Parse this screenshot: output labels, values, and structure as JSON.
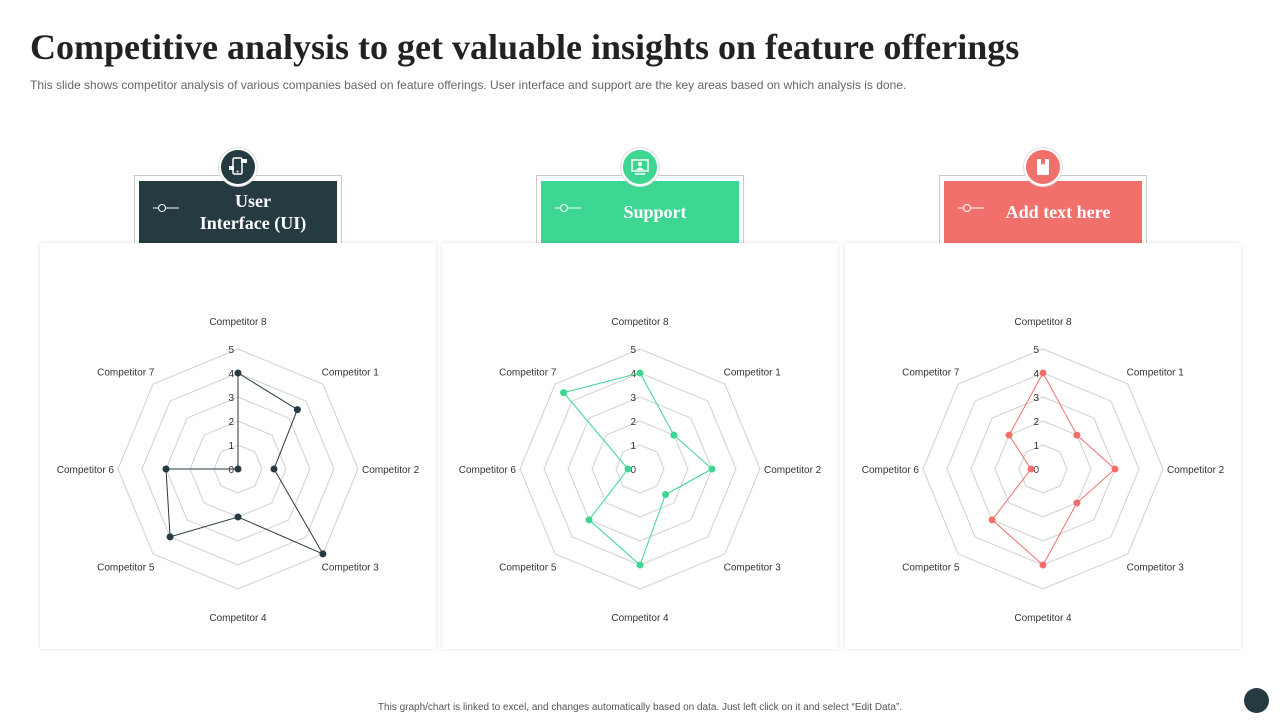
{
  "page": {
    "title": "Competitive analysis to get valuable insights on feature offerings",
    "subtitle": "This slide shows competitor analysis of various companies based on feature offerings. User interface and support are the key areas based on which analysis is done.",
    "footer": "This graph/chart is linked to excel, and changes automatically based on data. Just left click on it and select “Edit Data”."
  },
  "cards": [
    {
      "label": "User Interface (UI)",
      "color": "#263a42",
      "icon": "mobile-devices-icon"
    },
    {
      "label": "Support",
      "color": "#3dd693",
      "icon": "support-screen-icon"
    },
    {
      "label": "Add text here",
      "color": "#f2706c",
      "icon": "book-icon"
    }
  ],
  "chart_data": [
    {
      "type": "radar",
      "categories": [
        "Competitor 1",
        "Competitor 2",
        "Competitor 3",
        "Competitor 4",
        "Competitor 5",
        "Competitor 6",
        "Competitor 7",
        "Competitor 8"
      ],
      "values": [
        3.5,
        1.5,
        5,
        2,
        4,
        3,
        0,
        4
      ],
      "rlim": [
        0,
        5
      ],
      "ticks": [
        "0",
        "1",
        "2",
        "3",
        "4",
        "5"
      ],
      "color": "#263a42"
    },
    {
      "type": "radar",
      "categories": [
        "Competitor 1",
        "Competitor 2",
        "Competitor 3",
        "Competitor 4",
        "Competitor 5",
        "Competitor 6",
        "Competitor 7",
        "Competitor 8"
      ],
      "values": [
        2,
        3,
        1.5,
        4,
        3,
        0.5,
        4.5,
        4
      ],
      "rlim": [
        0,
        5
      ],
      "ticks": [
        "0",
        "1",
        "2",
        "3",
        "4",
        "5"
      ],
      "color": "#3dd693"
    },
    {
      "type": "radar",
      "categories": [
        "Competitor 1",
        "Competitor 2",
        "Competitor 3",
        "Competitor 4",
        "Competitor 5",
        "Competitor 6",
        "Competitor 7",
        "Competitor 8"
      ],
      "values": [
        2,
        3,
        2,
        4,
        3,
        0.5,
        2,
        4
      ],
      "rlim": [
        0,
        5
      ],
      "ticks": [
        "0",
        "1",
        "2",
        "3",
        "4",
        "5"
      ],
      "color": "#f2706c"
    }
  ]
}
